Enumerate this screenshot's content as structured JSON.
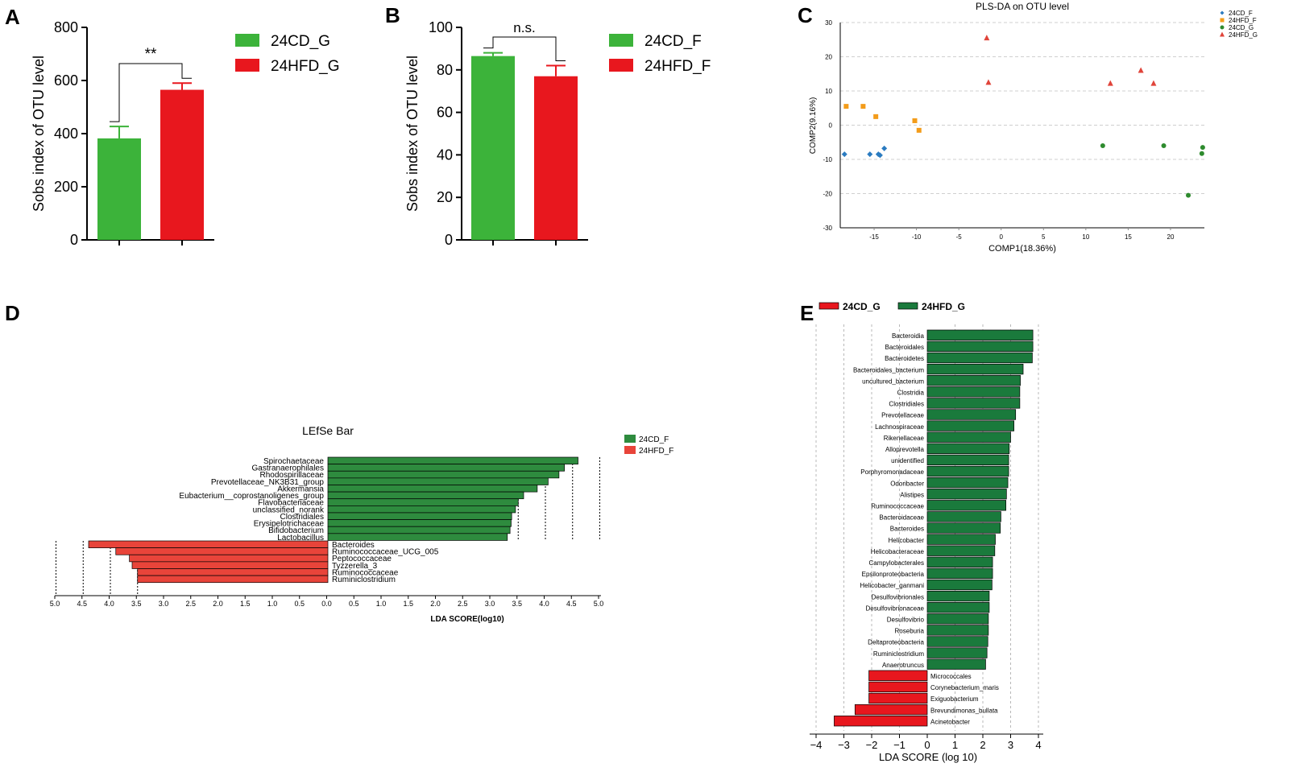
{
  "colors": {
    "green_bar": "#3cb33a",
    "red_bar": "#e8171e",
    "lefse_green": "#2e8b3e",
    "lefse_red": "#e8443a",
    "dark_green": "#1a7a3c",
    "blue": "#2b7bc0",
    "orange": "#f39c1a",
    "pls_green": "#2e8b2e",
    "pls_red": "#e0443a"
  },
  "chart_data": [
    {
      "panel": "A",
      "type": "bar",
      "categories": [
        "24CD_G",
        "24HFD_G"
      ],
      "values": [
        382,
        565
      ],
      "errors": [
        45,
        25
      ],
      "ylabel": "Sobs index of OTU level",
      "ylim": [
        0,
        800
      ],
      "yticks": [
        "0",
        "200",
        "400",
        "600",
        "800"
      ],
      "legend": [
        "24CD_G",
        "24HFD_G"
      ],
      "significance": "**"
    },
    {
      "panel": "B",
      "type": "bar",
      "categories": [
        "24CD_F",
        "24HFD_F"
      ],
      "values": [
        86.5,
        77
      ],
      "errors": [
        1.5,
        5
      ],
      "ylabel": "Sobs index of OTU level",
      "ylim": [
        0,
        100
      ],
      "yticks": [
        "0",
        "20",
        "40",
        "60",
        "80",
        "100"
      ],
      "legend": [
        "24CD_F",
        "24HFD_F"
      ],
      "significance": "n.s."
    },
    {
      "panel": "C",
      "type": "scatter",
      "title": "PLS-DA on OTU level",
      "xlabel": "COMP1(18.36%)",
      "ylabel": "COMP2(9.16%)",
      "xlim": [
        -19,
        24
      ],
      "ylim": [
        -30,
        30
      ],
      "xticks": [
        "-15",
        "-10",
        "-5",
        "0",
        "5",
        "10",
        "15",
        "20"
      ],
      "yticks": [
        "-30",
        "-20",
        "-10",
        "0",
        "10",
        "20",
        "30"
      ],
      "series": [
        {
          "name": "24CD_F",
          "marker": "diamond",
          "points": [
            [
              -18.5,
              -8.5
            ],
            [
              -15.5,
              -8.5
            ],
            [
              -14.5,
              -8.5
            ],
            [
              -14.3,
              -8.8
            ],
            [
              -13.8,
              -6.8
            ]
          ]
        },
        {
          "name": "24HFD_F",
          "marker": "square",
          "points": [
            [
              -18.3,
              5.5
            ],
            [
              -16.3,
              5.5
            ],
            [
              -14.8,
              2.5
            ],
            [
              -10.2,
              1.3
            ],
            [
              -9.7,
              -1.5
            ]
          ]
        },
        {
          "name": "24CD_G",
          "marker": "circle",
          "points": [
            [
              12,
              -6
            ],
            [
              19.2,
              -6
            ],
            [
              22.1,
              -20.5
            ],
            [
              23.7,
              -8.3
            ],
            [
              23.8,
              -6.5
            ]
          ]
        },
        {
          "name": "24HFD_G",
          "marker": "triangle",
          "points": [
            [
              -1.7,
              25.5
            ],
            [
              -1.5,
              12.5
            ],
            [
              12.9,
              12.2
            ],
            [
              16.5,
              16
            ],
            [
              18,
              12.2
            ]
          ]
        }
      ]
    },
    {
      "panel": "D",
      "type": "bar",
      "orientation": "horizontal",
      "title": "LEfSe Bar",
      "xlabel": "LDA SCORE(log10)",
      "xticks": [
        "5.0",
        "4.5",
        "4.0",
        "3.5",
        "3.0",
        "2.5",
        "2.0",
        "1.5",
        "1.0",
        "0.5",
        "0.0",
        "0.5",
        "1.0",
        "1.5",
        "2.0",
        "2.5",
        "3.0",
        "3.5",
        "4.0",
        "4.5",
        "5.0"
      ],
      "legend": [
        "24CD_F",
        "24HFD_F"
      ],
      "series": [
        {
          "name": "24CD_F",
          "categories": [
            "Spirochaetaceae",
            "Gastranaerophilales",
            "Rhodospirillaceae",
            "Prevotellaceae_NK3B31_group",
            "Akkermansia",
            "Eubacterium__coprostanoligenes_group",
            "Flavobacteriaceae",
            "unclassified_norank",
            "Clostridiales",
            "Erysipelotrichaceae",
            "Bifidobacterium",
            "Lactobacillus"
          ],
          "values": [
            4.6,
            4.35,
            4.25,
            4.05,
            3.85,
            3.6,
            3.5,
            3.45,
            3.38,
            3.37,
            3.35,
            3.3
          ]
        },
        {
          "name": "24HFD_F",
          "categories": [
            "Bacteroides",
            "Ruminococcaceae_UCG_005",
            "Peptococcaceae",
            "Tyzzerella_3",
            "Ruminococcaceae",
            "Ruminiclostridium"
          ],
          "values": [
            -4.4,
            -3.9,
            -3.65,
            -3.6,
            -3.5,
            -3.5
          ]
        }
      ]
    },
    {
      "panel": "E",
      "type": "bar",
      "orientation": "horizontal",
      "xlabel": "LDA SCORE (log 10)",
      "xlim": [
        -4,
        4
      ],
      "xticks": [
        "−4",
        "−3",
        "−2",
        "−1",
        "0",
        "1",
        "2",
        "3",
        "4"
      ],
      "legend": [
        "24CD_G",
        "24HFD_G"
      ],
      "series": [
        {
          "name": "24HFD_G",
          "categories": [
            "Bacteroidia",
            "Bacteroidales",
            "Bacteroidetes",
            "Bacteroidales_bacterium",
            "uncultured_bacterium",
            "Clostridia",
            "Clostridiales",
            "Prevotellaceae",
            "Lachnospiraceae",
            "Rikenellaceae",
            "Alloprevotella",
            "unidentified",
            "Porphyromonadaceae",
            "Odoribacter",
            "Alistipes",
            "Ruminococcaceae",
            "Bacteroidaceae",
            "Bacteroides",
            "Helicobacter",
            "Helicobacteraceae",
            "Campylobacterales",
            "Epsilonproteobacteria",
            "Helicobacter_ganmani",
            "Desulfovibrionales",
            "Desulfovibrionaceae",
            "Desulfovibrio",
            "Roseburia",
            "Deltaproteobacteria",
            "Ruminiclostridium",
            "Anaerotruncus"
          ],
          "values": [
            3.8,
            3.8,
            3.78,
            3.45,
            3.35,
            3.33,
            3.33,
            3.18,
            3.12,
            3.0,
            2.95,
            2.93,
            2.93,
            2.9,
            2.85,
            2.83,
            2.65,
            2.63,
            2.45,
            2.43,
            2.35,
            2.35,
            2.33,
            2.23,
            2.23,
            2.2,
            2.2,
            2.18,
            2.15,
            2.1
          ]
        },
        {
          "name": "24CD_G",
          "categories": [
            "Micrococcales",
            "Corynebacterium_maris",
            "Exiguobacterium",
            "Brevundimonas_bullata",
            "Acinetobacter"
          ],
          "values": [
            -2.1,
            -2.1,
            -2.1,
            -2.6,
            -3.35
          ]
        }
      ]
    }
  ]
}
